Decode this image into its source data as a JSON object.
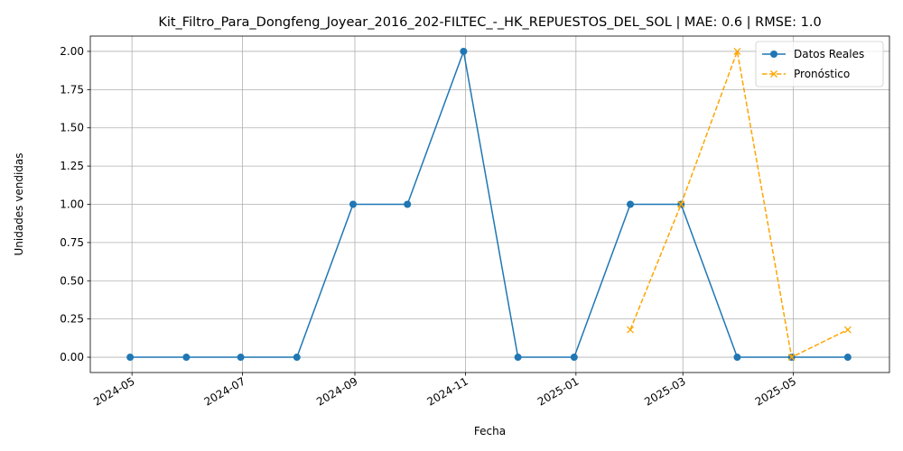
{
  "chart_data": {
    "type": "line",
    "title": "Kit_Filtro_Para_Dongfeng_Joyear_2016_202-FILTEC_-_HK_REPUESTOS_DEL_SOL | MAE: 0.6 | RMSE: 1.0",
    "xlabel": "Fecha",
    "ylabel": "Unidades vendidas",
    "xlim": [
      "2024-04-08",
      "2025-06-23"
    ],
    "ylim": [
      -0.1,
      2.1
    ],
    "grid": true,
    "legend_position": "top-right",
    "x_ticks": [
      "2024-05-01",
      "2024-07-01",
      "2024-09-01",
      "2024-11-01",
      "2025-01-01",
      "2025-03-01",
      "2025-05-01"
    ],
    "x_tick_labels": [
      "2024-05",
      "2024-07",
      "2024-09",
      "2024-11",
      "2025-01",
      "2025-03",
      "2025-05"
    ],
    "y_ticks": [
      0.0,
      0.25,
      0.5,
      0.75,
      1.0,
      1.25,
      1.5,
      1.75,
      2.0
    ],
    "y_tick_labels": [
      "0.00",
      "0.25",
      "0.50",
      "0.75",
      "1.00",
      "1.25",
      "1.50",
      "1.75",
      "2.00"
    ],
    "series": [
      {
        "name": "Datos Reales",
        "color": "#1f77b4",
        "style": "solid",
        "marker": "circle",
        "x": [
          "2024-04-30",
          "2024-05-31",
          "2024-06-30",
          "2024-07-31",
          "2024-08-31",
          "2024-09-30",
          "2024-10-31",
          "2024-11-30",
          "2024-12-31",
          "2025-01-31",
          "2025-02-28",
          "2025-03-31",
          "2025-04-30",
          "2025-05-31"
        ],
        "values": [
          0,
          0,
          0,
          0,
          1,
          1,
          2,
          0,
          0,
          1,
          1,
          0,
          0,
          0
        ]
      },
      {
        "name": "Pronóstico",
        "color": "#ffa500",
        "style": "dashed",
        "marker": "x",
        "x": [
          "2025-01-31",
          "2025-02-28",
          "2025-03-31",
          "2025-04-30",
          "2025-05-31"
        ],
        "values": [
          0.18,
          1.0,
          2.0,
          0.0,
          0.18
        ]
      }
    ]
  }
}
